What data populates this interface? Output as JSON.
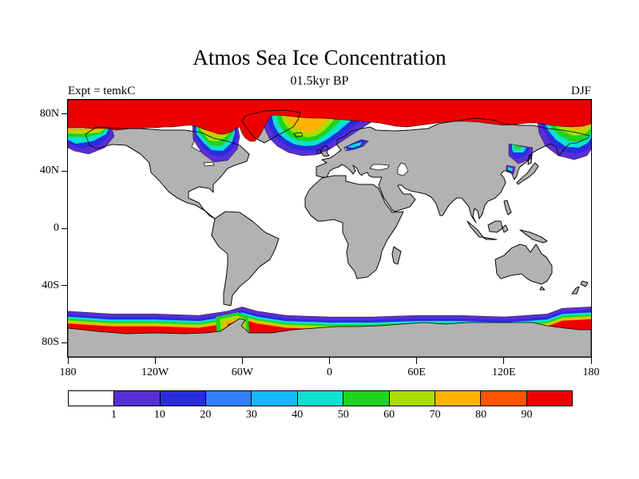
{
  "header": {
    "title": "Atmos Sea Ice Concentration",
    "subtitle": "01.5kyr BP",
    "experiment_label": "Expt = temkC",
    "season_label": "DJF"
  },
  "axes": {
    "y_ticks": [
      {
        "label": "80N",
        "lat": 80
      },
      {
        "label": "40N",
        "lat": 40
      },
      {
        "label": "0",
        "lat": 0
      },
      {
        "label": "40S",
        "lat": -40
      },
      {
        "label": "80S",
        "lat": -80
      }
    ],
    "x_ticks": [
      {
        "label": "180",
        "lon": -180
      },
      {
        "label": "120W",
        "lon": -120
      },
      {
        "label": "60W",
        "lon": -60
      },
      {
        "label": "0",
        "lon": 0
      },
      {
        "label": "60E",
        "lon": 60
      },
      {
        "label": "120E",
        "lon": 120
      },
      {
        "label": "180",
        "lon": 180
      }
    ]
  },
  "colorbar": {
    "labels": [
      "1",
      "10",
      "20",
      "30",
      "40",
      "50",
      "60",
      "70",
      "80",
      "90"
    ],
    "colors": [
      "#ffffff",
      "#5b2dd6",
      "#2b2be0",
      "#2f7fff",
      "#15b9ff",
      "#0de0cf",
      "#1ed41e",
      "#aadd00",
      "#ffb300",
      "#ff5500",
      "#ee0000"
    ]
  },
  "map": {
    "land_color": "#b2b2b2",
    "ocean_color": "#ffffff",
    "coastline_color": "#000000"
  },
  "chart_data": {
    "type": "heatmap",
    "title": "Atmos Sea Ice Concentration",
    "subtitle": "01.5kyr BP",
    "experiment": "temkC",
    "season": "DJF",
    "variable": "sea ice concentration (%)",
    "projection": "global equirectangular (cylindrical) map",
    "xlabel": "longitude",
    "ylabel": "latitude",
    "xlim": [
      -180,
      180
    ],
    "ylim": [
      -90,
      90
    ],
    "x_tick_labels": [
      "180",
      "120W",
      "60W",
      "0",
      "60E",
      "120E",
      "180"
    ],
    "y_tick_labels": [
      "80N",
      "40N",
      "0",
      "40S",
      "80S"
    ],
    "contour_levels": [
      1,
      10,
      20,
      30,
      40,
      50,
      60,
      70,
      80,
      90
    ],
    "palette": [
      "#ffffff",
      "#5b2dd6",
      "#2b2be0",
      "#2f7fff",
      "#15b9ff",
      "#0de0cf",
      "#1ed41e",
      "#aadd00",
      "#ffb300",
      "#ff5500",
      "#ee0000"
    ],
    "legend_position": "horizontal colorbar below map",
    "grid": false,
    "regions": [
      {
        "name": "Arctic Ocean ice cap",
        "extent": "poleward of about 70N at all longitudes, including Greenland and Arctic coasts",
        "concentration": "greater than 90"
      },
      {
        "name": "Bering Sea marginal ice zone",
        "extent": "about 55N-68N, 165E-160W (left edge of map)",
        "concentration": "1-90 gradient toward pole"
      },
      {
        "name": "Hudson Bay / Labrador Sea ice tongue",
        "extent": "about 50N-70N, 95W-50W",
        "concentration": "1-90 gradient toward pole"
      },
      {
        "name": "Greenland-Iceland-Norwegian Seas ice edge",
        "extent": "about 55N-75N, 45W-20E, rainbow arc around Iceland",
        "concentration": "1-90 gradient toward pole"
      },
      {
        "name": "Sea of Okhotsk / NW Pacific ice tongue",
        "extent": "about 50N-65N, 135E-180",
        "concentration": "1-90 gradient toward pole"
      },
      {
        "name": "Sea of Japan / Yellow Sea patches",
        "extent": "about 38N-55N, 120E-142E",
        "concentration": "1-50"
      },
      {
        "name": "Baltic Sea patch",
        "extent": "about 54N-65N, 10E-30E",
        "concentration": "1-40"
      },
      {
        "name": "Southern Ocean circumpolar band",
        "extent": "about 55S-70S at all longitudes around Antarctica",
        "concentration": "1-40, increasing toward the Antarctic coast"
      },
      {
        "name": "Weddell Sea / Antarctic Peninsula pocket",
        "extent": "about 58S-72S, 65W-50W",
        "concentration": "up to greater than 90"
      }
    ]
  }
}
